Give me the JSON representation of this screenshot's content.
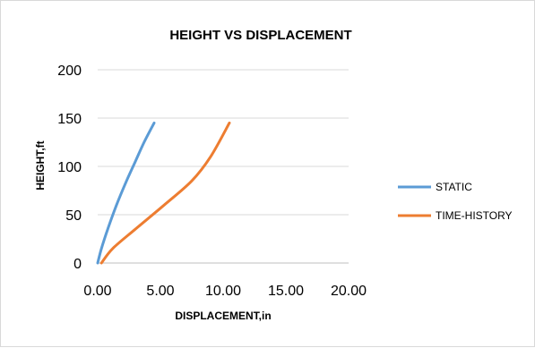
{
  "chart_data": {
    "type": "line",
    "title": "HEIGHT VS DISPLACEMENT",
    "xlabel": "DISPLACEMENT,in",
    "ylabel": "HEIGHT,ft",
    "xlim": [
      0,
      20
    ],
    "ylim": [
      0,
      200
    ],
    "x_ticks": [
      "0.00",
      "5.00",
      "10.00",
      "15.00",
      "20.00"
    ],
    "y_ticks": [
      "0",
      "50",
      "100",
      "150",
      "200"
    ],
    "grid": "horizontal",
    "legend_position": "right",
    "series": [
      {
        "name": "STATIC",
        "color": "#5b9bd5",
        "points": [
          [
            0,
            0
          ],
          [
            0.3,
            15
          ],
          [
            0.8,
            35
          ],
          [
            1.5,
            60
          ],
          [
            2.3,
            85
          ],
          [
            3.0,
            105
          ],
          [
            3.7,
            125
          ],
          [
            4.5,
            145
          ]
        ]
      },
      {
        "name": "TIME-HISTORY",
        "color": "#ed7d31",
        "points": [
          [
            0.3,
            0
          ],
          [
            1.2,
            15
          ],
          [
            3.0,
            35
          ],
          [
            5.3,
            60
          ],
          [
            7.5,
            85
          ],
          [
            9.0,
            110
          ],
          [
            10.5,
            145
          ]
        ]
      }
    ]
  }
}
